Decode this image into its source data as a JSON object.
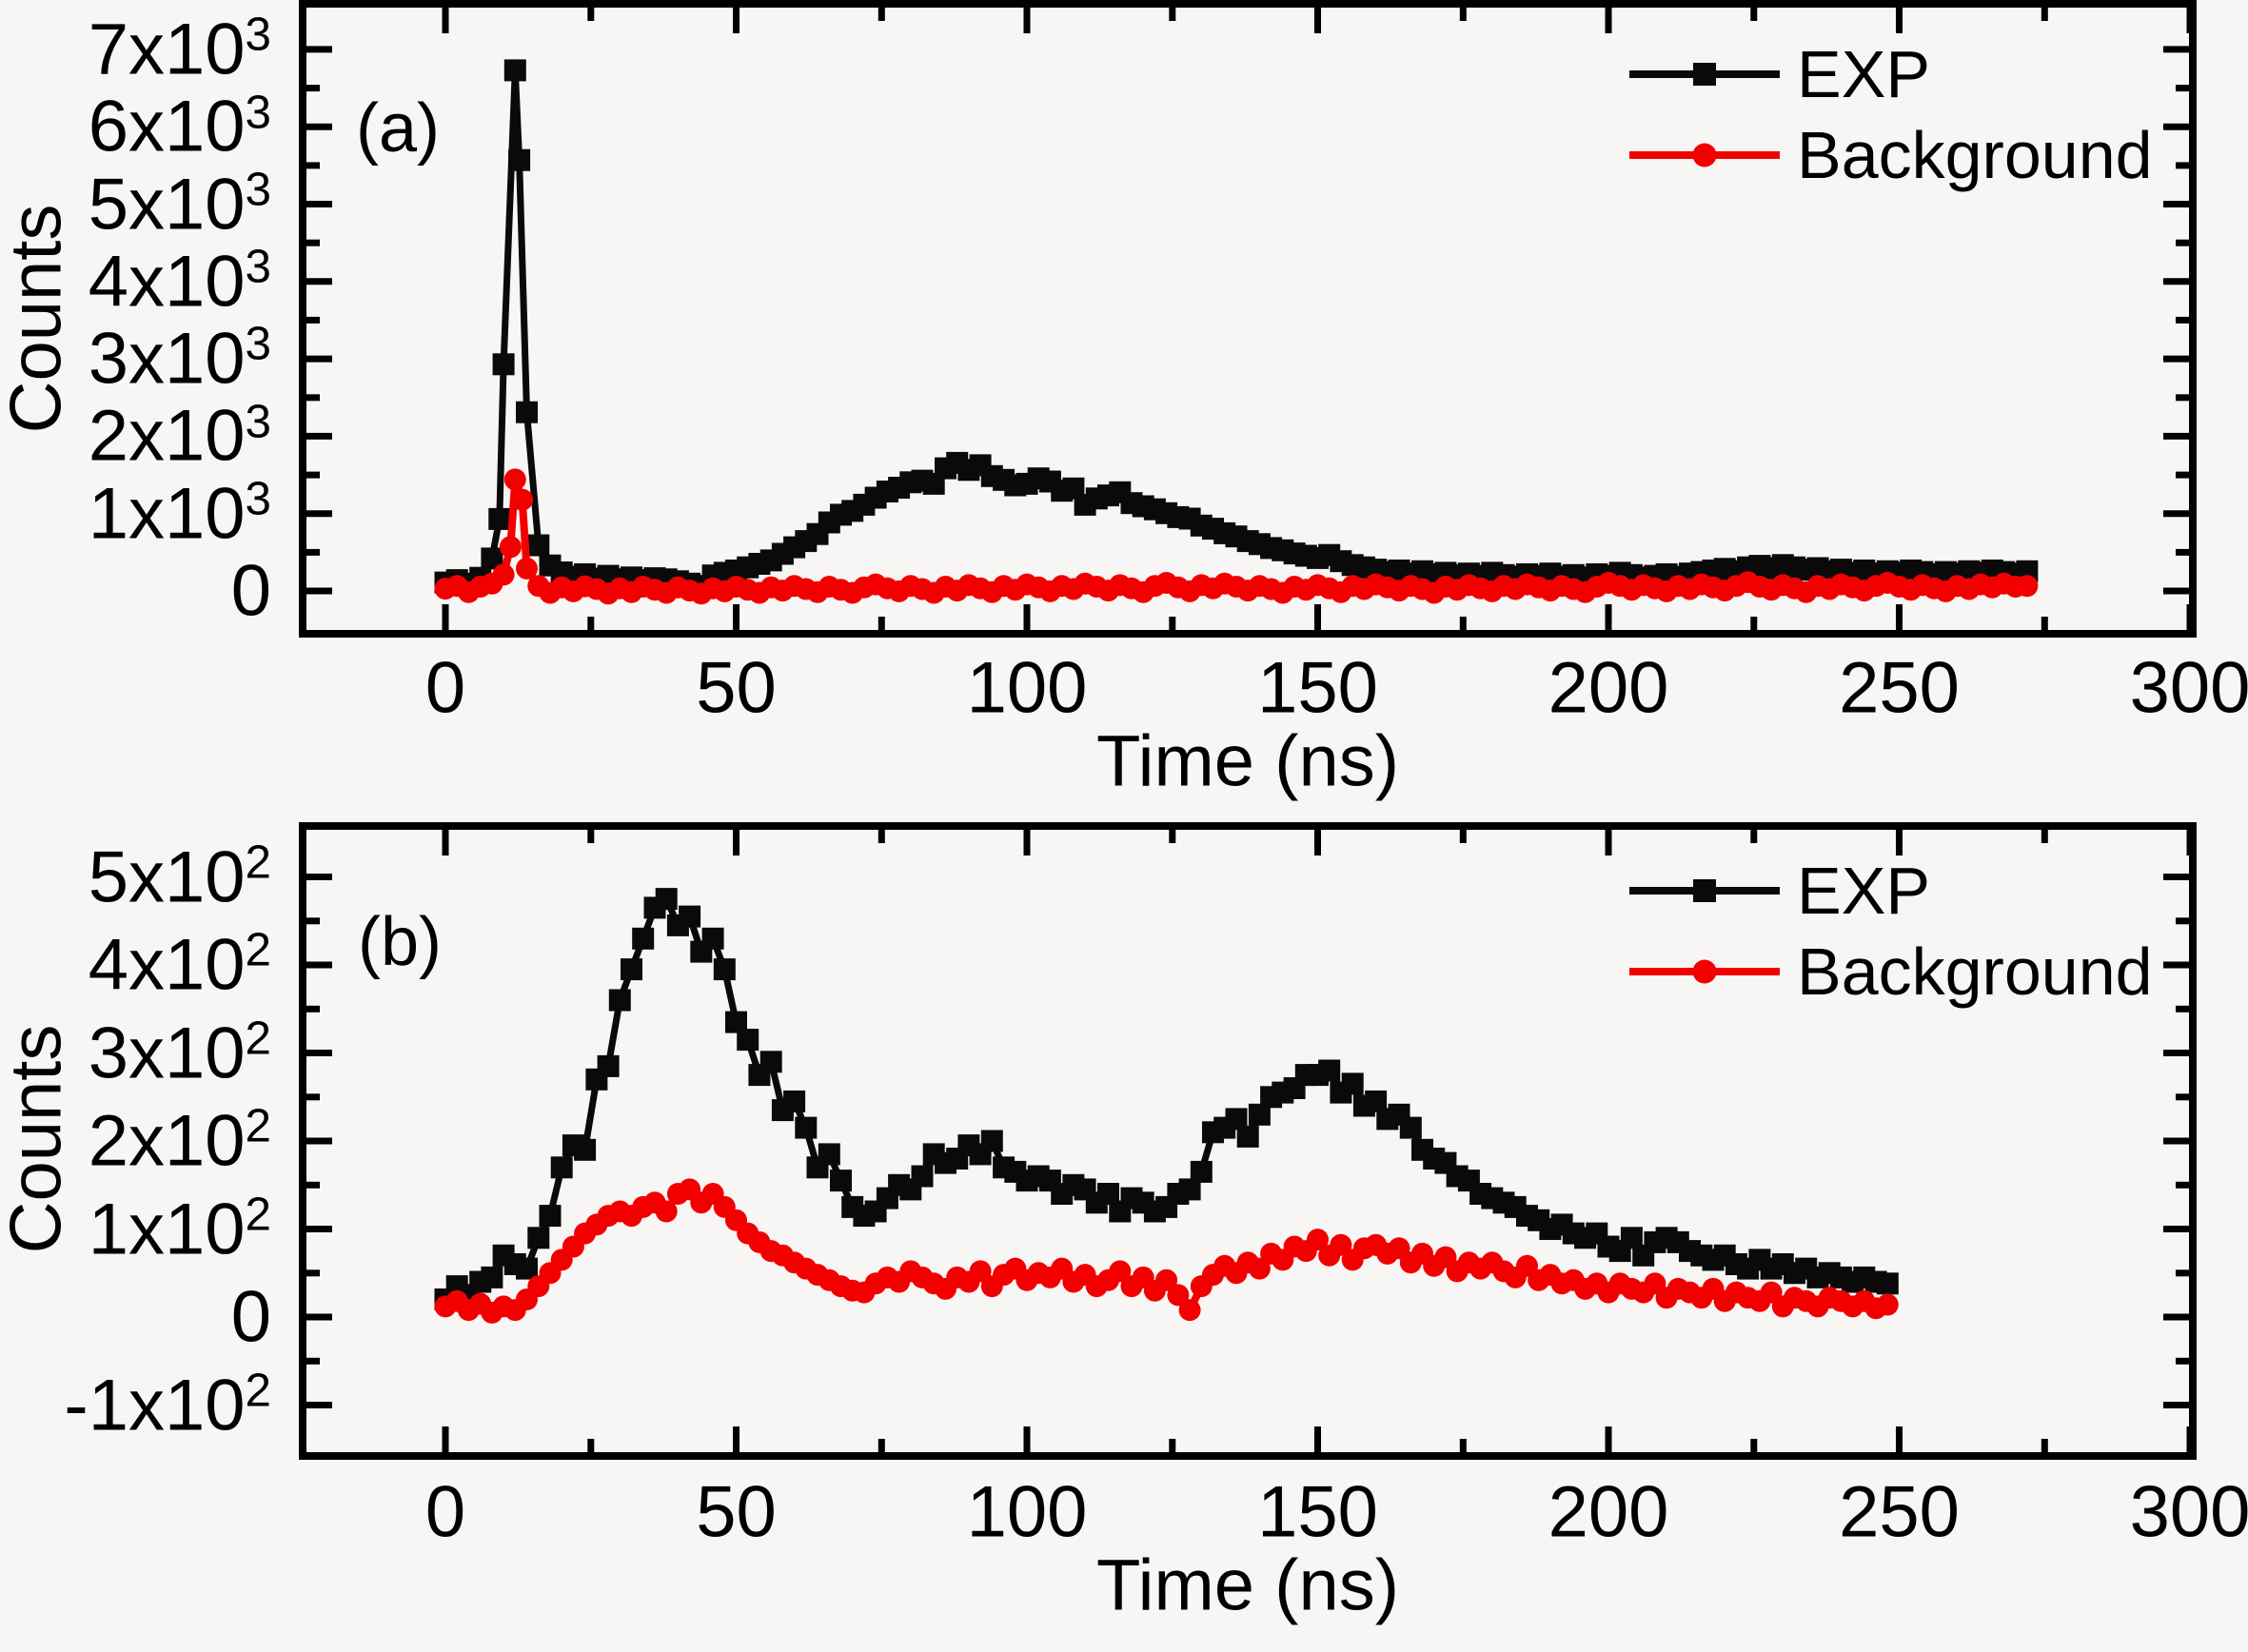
{
  "colors": {
    "exp": "#0a0a0a",
    "background": "#f20000",
    "page_bg": "#f7f6f4"
  },
  "chart_data": [
    {
      "type": "line",
      "panel_label": "(a)",
      "xlabel": "Time (ns)",
      "ylabel": "Counts",
      "xlim": [
        -24.5,
        300.5
      ],
      "ylim": [
        -560,
        7560
      ],
      "x_ticks": {
        "values": [
          0,
          50,
          100,
          150,
          200,
          250,
          300
        ],
        "labels": [
          "0",
          "50",
          "100",
          "150",
          "200",
          "250",
          "300"
        ],
        "minor": [
          25,
          75,
          125,
          175,
          225,
          275
        ]
      },
      "y_ticks": [
        {
          "value": 0,
          "text": "0",
          "sup": ""
        },
        {
          "value": 1000,
          "text": "1x10",
          "sup": "3"
        },
        {
          "value": 2000,
          "text": "2x10",
          "sup": "3"
        },
        {
          "value": 3000,
          "text": "3x10",
          "sup": "3"
        },
        {
          "value": 4000,
          "text": "4x10",
          "sup": "3"
        },
        {
          "value": 5000,
          "text": "5x10",
          "sup": "3"
        },
        {
          "value": 6000,
          "text": "6x10",
          "sup": "3"
        },
        {
          "value": 7000,
          "text": "7x10",
          "sup": "3"
        }
      ],
      "y_minor": [
        500,
        1500,
        2500,
        3500,
        4500,
        5500,
        6500
      ],
      "legend": [
        {
          "label": "EXP"
        },
        {
          "label": "Background"
        }
      ],
      "series": [
        {
          "name": "EXP",
          "marker": "square",
          "color": "#0a0a0a",
          "t0": 0,
          "dt": 2,
          "y": [
            110,
            140,
            95,
            170,
            420,
            2930,
            6730,
            2310,
            590,
            330,
            240,
            185,
            215,
            160,
            195,
            150,
            175,
            140,
            165,
            150,
            125,
            95,
            65,
            200,
            235,
            265,
            305,
            350,
            395,
            480,
            565,
            645,
            735,
            885,
            985,
            1035,
            1115,
            1205,
            1285,
            1335,
            1405,
            1425,
            1385,
            1585,
            1655,
            1565,
            1625,
            1485,
            1435,
            1365,
            1385,
            1455,
            1415,
            1295,
            1325,
            1115,
            1195,
            1235,
            1275,
            1135,
            1095,
            1055,
            1005,
            955,
            935,
            845,
            805,
            745,
            705,
            645,
            605,
            555,
            525,
            485,
            455,
            425,
            465,
            385,
            335,
            305,
            275,
            245,
            265,
            225,
            255,
            215,
            235,
            205,
            225,
            195,
            235,
            205,
            185,
            215,
            195,
            225,
            185,
            205,
            175,
            215,
            195,
            235,
            205,
            175,
            195,
            215,
            185,
            225,
            245,
            265,
            285,
            255,
            305,
            325,
            295,
            335,
            305,
            275,
            295,
            255,
            275,
            235,
            265,
            225,
            255,
            235,
            265,
            245,
            215,
            245,
            225,
            255,
            235,
            265,
            245,
            225,
            255
          ],
          "extra": [
            [
              9.3,
              930
            ],
            [
              12.7,
              5570
            ]
          ]
        },
        {
          "name": "Background",
          "marker": "circle",
          "color": "#f20000",
          "t0": 0,
          "dt": 2,
          "y": [
            30,
            65,
            -15,
            55,
            95,
            210,
            1440,
            290,
            65,
            -25,
            45,
            -5,
            60,
            25,
            -35,
            35,
            -15,
            55,
            15,
            -25,
            45,
            5,
            -35,
            35,
            -5,
            55,
            15,
            -25,
            45,
            5,
            65,
            25,
            -15,
            55,
            15,
            -25,
            45,
            85,
            35,
            -5,
            65,
            25,
            -25,
            55,
            5,
            75,
            35,
            -15,
            65,
            15,
            85,
            45,
            -5,
            65,
            25,
            95,
            55,
            5,
            75,
            35,
            -15,
            65,
            105,
            45,
            -5,
            75,
            35,
            95,
            55,
            5,
            65,
            25,
            -25,
            55,
            15,
            75,
            35,
            -15,
            65,
            25,
            85,
            45,
            5,
            65,
            25,
            -25,
            55,
            15,
            75,
            35,
            -5,
            65,
            25,
            85,
            45,
            5,
            65,
            25,
            -15,
            55,
            105,
            65,
            15,
            75,
            35,
            -5,
            65,
            25,
            85,
            45,
            5,
            65,
            115,
            55,
            15,
            75,
            35,
            -15,
            65,
            25,
            85,
            45,
            5,
            65,
            105,
            55,
            15,
            75,
            35,
            -5,
            65,
            25,
            85,
            45,
            95,
            55,
            65
          ],
          "extra": [
            [
              11.2,
              570
            ],
            [
              13.2,
              1180
            ]
          ]
        }
      ]
    },
    {
      "type": "line",
      "panel_label": "(b)",
      "xlabel": "Time (ns)",
      "ylabel": "Counts",
      "xlim": [
        -24.5,
        300.5
      ],
      "ylim": [
        -158,
        558
      ],
      "x_ticks": {
        "values": [
          0,
          50,
          100,
          150,
          200,
          250,
          300
        ],
        "labels": [
          "0",
          "50",
          "100",
          "150",
          "200",
          "250",
          "300"
        ],
        "minor": [
          25,
          75,
          125,
          175,
          225,
          275
        ]
      },
      "y_ticks": [
        {
          "value": -100,
          "text": "-1x10",
          "sup": "2"
        },
        {
          "value": 0,
          "text": "0",
          "sup": ""
        },
        {
          "value": 100,
          "text": "1x10",
          "sup": "2"
        },
        {
          "value": 200,
          "text": "2x10",
          "sup": "2"
        },
        {
          "value": 300,
          "text": "3x10",
          "sup": "2"
        },
        {
          "value": 400,
          "text": "4x10",
          "sup": "2"
        },
        {
          "value": 500,
          "text": "5x10",
          "sup": "2"
        }
      ],
      "y_minor": [
        -150,
        -50,
        50,
        150,
        250,
        350,
        450,
        550
      ],
      "legend": [
        {
          "label": "EXP"
        },
        {
          "label": "Background"
        }
      ],
      "series": [
        {
          "name": "EXP",
          "marker": "square",
          "color": "#0a0a0a",
          "t0": 0,
          "dt": 2,
          "y": [
            20,
            35,
            25,
            40,
            45,
            70,
            60,
            55,
            90,
            115,
            170,
            195,
            190,
            270,
            285,
            360,
            395,
            430,
            465,
            475,
            445,
            455,
            415,
            430,
            395,
            335,
            315,
            275,
            290,
            235,
            245,
            215,
            170,
            185,
            155,
            125,
            115,
            120,
            135,
            150,
            145,
            160,
            185,
            175,
            180,
            195,
            185,
            200,
            170,
            165,
            155,
            160,
            155,
            140,
            150,
            145,
            130,
            140,
            120,
            135,
            130,
            120,
            125,
            140,
            145,
            165,
            210,
            215,
            225,
            205,
            230,
            250,
            255,
            260,
            275,
            275,
            280,
            255,
            265,
            240,
            245,
            225,
            230,
            215,
            190,
            180,
            175,
            160,
            155,
            140,
            135,
            130,
            125,
            115,
            110,
            100,
            105,
            95,
            90,
            95,
            80,
            75,
            90,
            70,
            85,
            90,
            85,
            75,
            70,
            65,
            70,
            60,
            55,
            65,
            55,
            60,
            50,
            55,
            45,
            50,
            45,
            40,
            45,
            40,
            38
          ]
        },
        {
          "name": "Background",
          "marker": "circle",
          "color": "#f20000",
          "t0": 0,
          "dt": 2,
          "y": [
            12,
            18,
            8,
            15,
            5,
            12,
            8,
            20,
            35,
            50,
            65,
            80,
            95,
            105,
            115,
            120,
            115,
            125,
            130,
            120,
            140,
            145,
            130,
            140,
            125,
            110,
            95,
            85,
            75,
            70,
            62,
            55,
            48,
            42,
            35,
            30,
            28,
            38,
            45,
            40,
            52,
            45,
            38,
            32,
            45,
            40,
            52,
            35,
            48,
            55,
            42,
            50,
            45,
            55,
            40,
            48,
            35,
            42,
            52,
            35,
            45,
            30,
            42,
            25,
            8,
            35,
            48,
            58,
            50,
            62,
            55,
            72,
            65,
            80,
            75,
            88,
            70,
            82,
            65,
            78,
            82,
            72,
            78,
            62,
            72,
            58,
            68,
            52,
            62,
            55,
            62,
            52,
            45,
            58,
            42,
            48,
            38,
            42,
            32,
            38,
            28,
            38,
            32,
            28,
            38,
            22,
            32,
            28,
            22,
            32,
            18,
            28,
            22,
            18,
            28,
            12,
            22,
            18,
            12,
            22,
            18,
            12,
            18,
            10,
            14
          ]
        }
      ]
    }
  ]
}
